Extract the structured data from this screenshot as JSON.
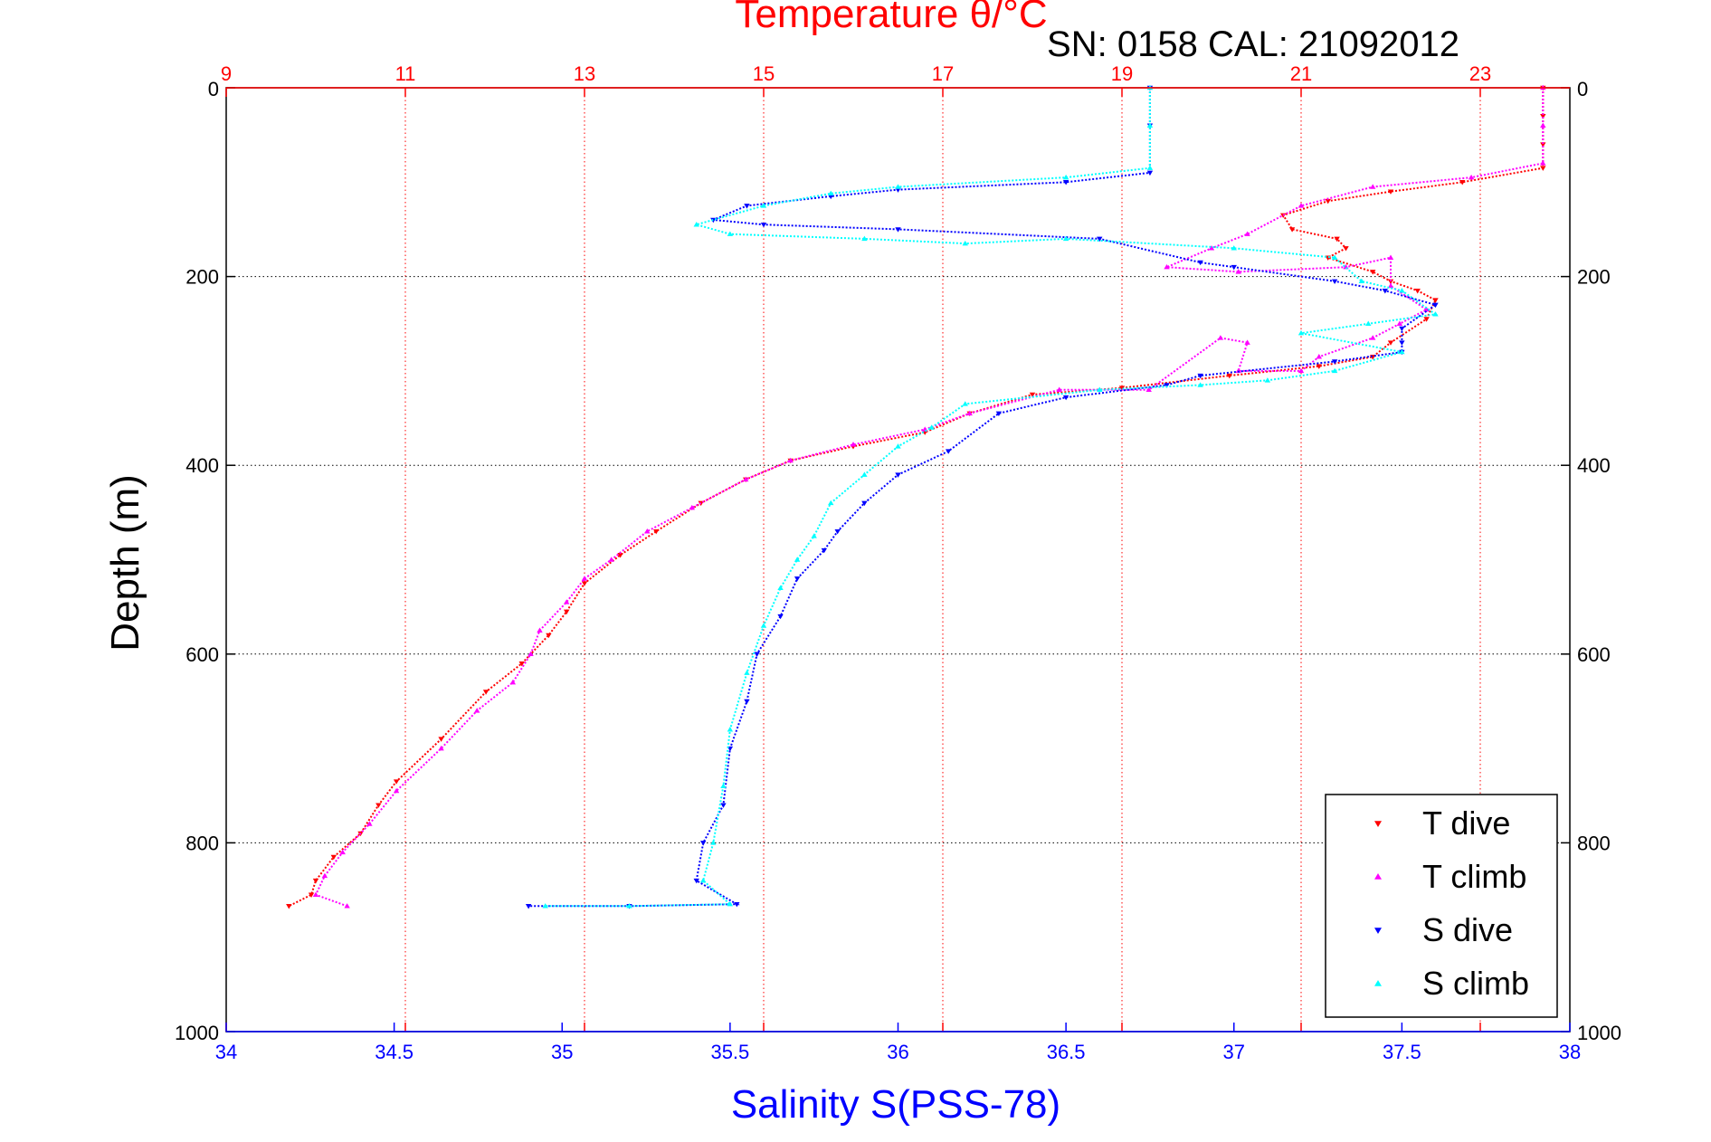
{
  "chart_data": {
    "type": "scatter",
    "title": "Temperature θ/°C",
    "subtitle": "SN: 0158  CAL: 21092012",
    "ylabel": "Depth (m)",
    "xlabel_bottom": "Salinity S(PSS-78)",
    "ylim": [
      0,
      1000
    ],
    "y_reversed": true,
    "y_ticks": [
      0,
      200,
      400,
      600,
      800,
      1000
    ],
    "top_axis": {
      "label": "Temperature θ/°C",
      "range": [
        9,
        24
      ],
      "ticks": [
        9,
        11,
        13,
        15,
        17,
        19,
        21,
        23
      ],
      "color": "#ff0000"
    },
    "bottom_axis": {
      "label": "Salinity S(PSS-78)",
      "range": [
        34,
        38
      ],
      "ticks": [
        34,
        34.5,
        35,
        35.5,
        36,
        36.5,
        37,
        37.5,
        38
      ],
      "color": "#0000ff"
    },
    "grid": true,
    "legend_position": "bottom-right",
    "series": [
      {
        "name": "T dive",
        "axis": "temperature",
        "marker": "triangle-down",
        "color": "#ff0000",
        "points": [
          [
            23.7,
            0
          ],
          [
            23.7,
            30
          ],
          [
            23.7,
            60
          ],
          [
            23.7,
            85
          ],
          [
            22.8,
            100
          ],
          [
            22.0,
            110
          ],
          [
            21.3,
            120
          ],
          [
            20.8,
            135
          ],
          [
            20.9,
            150
          ],
          [
            21.4,
            160
          ],
          [
            21.5,
            170
          ],
          [
            21.3,
            180
          ],
          [
            21.8,
            195
          ],
          [
            22.0,
            205
          ],
          [
            22.3,
            215
          ],
          [
            22.5,
            225
          ],
          [
            22.4,
            245
          ],
          [
            22.0,
            270
          ],
          [
            21.8,
            285
          ],
          [
            21.2,
            295
          ],
          [
            20.2,
            305
          ],
          [
            19.0,
            318
          ],
          [
            18.0,
            325
          ],
          [
            17.3,
            345
          ],
          [
            16.8,
            365
          ],
          [
            16.0,
            380
          ],
          [
            15.3,
            395
          ],
          [
            14.8,
            415
          ],
          [
            14.3,
            440
          ],
          [
            13.8,
            470
          ],
          [
            13.4,
            495
          ],
          [
            13.0,
            525
          ],
          [
            12.8,
            555
          ],
          [
            12.6,
            580
          ],
          [
            12.3,
            610
          ],
          [
            11.9,
            640
          ],
          [
            11.4,
            690
          ],
          [
            10.9,
            735
          ],
          [
            10.7,
            760
          ],
          [
            10.5,
            790
          ],
          [
            10.2,
            815
          ],
          [
            10.0,
            840
          ],
          [
            9.95,
            855
          ],
          [
            9.7,
            867
          ]
        ]
      },
      {
        "name": "T climb",
        "axis": "temperature",
        "marker": "triangle-up",
        "color": "#ff00ff",
        "points": [
          [
            23.7,
            0
          ],
          [
            23.7,
            40
          ],
          [
            23.7,
            80
          ],
          [
            22.9,
            95
          ],
          [
            21.8,
            105
          ],
          [
            21.0,
            125
          ],
          [
            20.4,
            155
          ],
          [
            20.0,
            170
          ],
          [
            19.5,
            190
          ],
          [
            20.3,
            195
          ],
          [
            21.5,
            190
          ],
          [
            22.0,
            180
          ],
          [
            22.0,
            210
          ],
          [
            22.4,
            235
          ],
          [
            22.1,
            250
          ],
          [
            21.8,
            265
          ],
          [
            21.2,
            285
          ],
          [
            21.0,
            300
          ],
          [
            20.3,
            300
          ],
          [
            20.4,
            270
          ],
          [
            20.1,
            265
          ],
          [
            19.3,
            320
          ],
          [
            18.3,
            320
          ],
          [
            17.3,
            345
          ],
          [
            16.8,
            362
          ],
          [
            16.0,
            378
          ],
          [
            15.3,
            395
          ],
          [
            14.8,
            415
          ],
          [
            14.2,
            445
          ],
          [
            13.7,
            470
          ],
          [
            13.3,
            500
          ],
          [
            13.0,
            520
          ],
          [
            12.8,
            545
          ],
          [
            12.5,
            575
          ],
          [
            12.4,
            600
          ],
          [
            12.2,
            630
          ],
          [
            11.8,
            660
          ],
          [
            11.4,
            700
          ],
          [
            10.9,
            745
          ],
          [
            10.6,
            780
          ],
          [
            10.3,
            810
          ],
          [
            10.1,
            835
          ],
          [
            10.0,
            855
          ],
          [
            10.35,
            867
          ]
        ]
      },
      {
        "name": "S dive",
        "axis": "salinity",
        "marker": "triangle-down",
        "color": "#0000ff",
        "points": [
          [
            36.75,
            0
          ],
          [
            36.75,
            40
          ],
          [
            36.75,
            90
          ],
          [
            36.5,
            100
          ],
          [
            36.0,
            108
          ],
          [
            35.8,
            115
          ],
          [
            35.55,
            125
          ],
          [
            35.45,
            140
          ],
          [
            35.6,
            145
          ],
          [
            36.0,
            150
          ],
          [
            36.6,
            160
          ],
          [
            36.9,
            185
          ],
          [
            37.0,
            190
          ],
          [
            37.3,
            205
          ],
          [
            37.45,
            215
          ],
          [
            37.6,
            230
          ],
          [
            37.5,
            255
          ],
          [
            37.5,
            270
          ],
          [
            37.5,
            280
          ],
          [
            37.3,
            290
          ],
          [
            36.9,
            305
          ],
          [
            36.8,
            315
          ],
          [
            36.5,
            328
          ],
          [
            36.3,
            345
          ],
          [
            36.15,
            385
          ],
          [
            36.0,
            410
          ],
          [
            35.9,
            440
          ],
          [
            35.82,
            470
          ],
          [
            35.78,
            490
          ],
          [
            35.7,
            520
          ],
          [
            35.65,
            560
          ],
          [
            35.58,
            600
          ],
          [
            35.55,
            650
          ],
          [
            35.5,
            700
          ],
          [
            35.48,
            760
          ],
          [
            35.42,
            800
          ],
          [
            35.4,
            840
          ],
          [
            35.52,
            865
          ],
          [
            35.2,
            867
          ],
          [
            34.9,
            867
          ]
        ]
      },
      {
        "name": "S climb",
        "axis": "salinity",
        "marker": "triangle-up",
        "color": "#00ffff",
        "points": [
          [
            36.75,
            0
          ],
          [
            36.75,
            40
          ],
          [
            36.75,
            85
          ],
          [
            36.5,
            95
          ],
          [
            36.0,
            105
          ],
          [
            35.8,
            112
          ],
          [
            35.6,
            125
          ],
          [
            35.4,
            145
          ],
          [
            35.5,
            155
          ],
          [
            35.9,
            160
          ],
          [
            36.2,
            165
          ],
          [
            36.5,
            160
          ],
          [
            37.0,
            170
          ],
          [
            37.3,
            180
          ],
          [
            37.38,
            205
          ],
          [
            37.5,
            215
          ],
          [
            37.6,
            240
          ],
          [
            37.4,
            250
          ],
          [
            37.2,
            260
          ],
          [
            37.5,
            280
          ],
          [
            37.3,
            300
          ],
          [
            37.1,
            310
          ],
          [
            36.9,
            315
          ],
          [
            36.6,
            320
          ],
          [
            36.2,
            335
          ],
          [
            36.1,
            360
          ],
          [
            36.0,
            380
          ],
          [
            35.9,
            410
          ],
          [
            35.8,
            440
          ],
          [
            35.75,
            475
          ],
          [
            35.7,
            500
          ],
          [
            35.65,
            530
          ],
          [
            35.6,
            570
          ],
          [
            35.55,
            620
          ],
          [
            35.5,
            680
          ],
          [
            35.48,
            740
          ],
          [
            35.45,
            800
          ],
          [
            35.42,
            840
          ],
          [
            35.5,
            865
          ],
          [
            35.2,
            867
          ],
          [
            34.95,
            867
          ]
        ]
      }
    ]
  }
}
